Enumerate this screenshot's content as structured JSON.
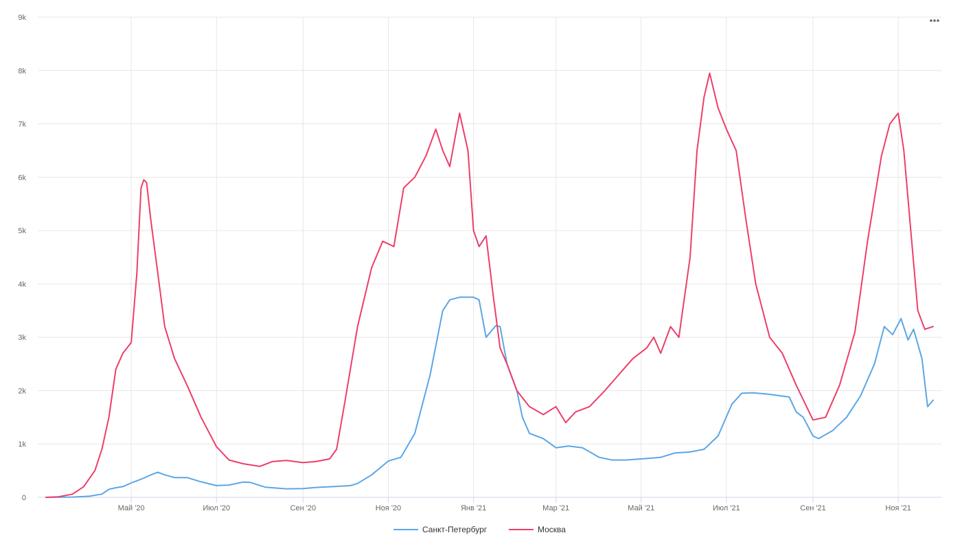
{
  "chart_data": {
    "type": "line",
    "title": "",
    "xlabel": "",
    "ylabel": "",
    "x_start": "2020-03-01",
    "x_end": "2021-11-26",
    "x_ticks": [
      {
        "label": "Май '20",
        "date": "2020-05-01"
      },
      {
        "label": "Июл '20",
        "date": "2020-07-01"
      },
      {
        "label": "Сен '20",
        "date": "2020-09-01"
      },
      {
        "label": "Ноя '20",
        "date": "2020-11-01"
      },
      {
        "label": "Янв '21",
        "date": "2021-01-01"
      },
      {
        "label": "Мар '21",
        "date": "2021-03-01"
      },
      {
        "label": "Май '21",
        "date": "2021-05-01"
      },
      {
        "label": "Июл '21",
        "date": "2021-07-01"
      },
      {
        "label": "Сен '21",
        "date": "2021-09-01"
      },
      {
        "label": "Ноя '21",
        "date": "2021-11-01"
      }
    ],
    "ylim": [
      0,
      9000
    ],
    "y_ticks": [
      {
        "label": "0",
        "value": 0
      },
      {
        "label": "1k",
        "value": 1000
      },
      {
        "label": "2k",
        "value": 2000
      },
      {
        "label": "3k",
        "value": 3000
      },
      {
        "label": "4k",
        "value": 4000
      },
      {
        "label": "5k",
        "value": 5000
      },
      {
        "label": "6k",
        "value": 6000
      },
      {
        "label": "7k",
        "value": 7000
      },
      {
        "label": "8k",
        "value": 8000
      },
      {
        "label": "9k",
        "value": 9000
      }
    ],
    "grid": true,
    "legend_position": "bottom-center",
    "series": [
      {
        "name": "Санкт-Петербург",
        "color": "#5aa6e6",
        "points": [
          [
            "2020-03-01",
            0
          ],
          [
            "2020-03-20",
            5
          ],
          [
            "2020-04-01",
            20
          ],
          [
            "2020-04-10",
            60
          ],
          [
            "2020-04-15",
            150
          ],
          [
            "2020-04-20",
            180
          ],
          [
            "2020-04-25",
            200
          ],
          [
            "2020-05-01",
            270
          ],
          [
            "2020-05-05",
            310
          ],
          [
            "2020-05-10",
            360
          ],
          [
            "2020-05-15",
            420
          ],
          [
            "2020-05-20",
            470
          ],
          [
            "2020-05-25",
            420
          ],
          [
            "2020-06-01",
            370
          ],
          [
            "2020-06-10",
            370
          ],
          [
            "2020-06-20",
            290
          ],
          [
            "2020-07-01",
            220
          ],
          [
            "2020-07-10",
            230
          ],
          [
            "2020-07-20",
            285
          ],
          [
            "2020-07-25",
            280
          ],
          [
            "2020-08-05",
            190
          ],
          [
            "2020-08-20",
            160
          ],
          [
            "2020-09-01",
            165
          ],
          [
            "2020-09-10",
            185
          ],
          [
            "2020-09-25",
            205
          ],
          [
            "2020-10-05",
            220
          ],
          [
            "2020-10-10",
            260
          ],
          [
            "2020-10-20",
            420
          ],
          [
            "2020-11-01",
            680
          ],
          [
            "2020-11-10",
            750
          ],
          [
            "2020-11-20",
            1200
          ],
          [
            "2020-12-01",
            2300
          ],
          [
            "2020-12-10",
            3500
          ],
          [
            "2020-12-15",
            3700
          ],
          [
            "2020-12-22",
            3750
          ],
          [
            "2021-01-01",
            3750
          ],
          [
            "2021-01-05",
            3700
          ],
          [
            "2021-01-10",
            3000
          ],
          [
            "2021-01-17",
            3220
          ],
          [
            "2021-01-20",
            3200
          ],
          [
            "2021-01-25",
            2500
          ],
          [
            "2021-02-01",
            2000
          ],
          [
            "2021-02-05",
            1500
          ],
          [
            "2021-02-10",
            1200
          ],
          [
            "2021-02-20",
            1100
          ],
          [
            "2021-03-01",
            930
          ],
          [
            "2021-03-10",
            960
          ],
          [
            "2021-03-20",
            930
          ],
          [
            "2021-04-01",
            750
          ],
          [
            "2021-04-10",
            700
          ],
          [
            "2021-04-20",
            700
          ],
          [
            "2021-05-01",
            720
          ],
          [
            "2021-05-15",
            750
          ],
          [
            "2021-05-25",
            830
          ],
          [
            "2021-06-05",
            850
          ],
          [
            "2021-06-15",
            900
          ],
          [
            "2021-06-25",
            1150
          ],
          [
            "2021-07-05",
            1750
          ],
          [
            "2021-07-12",
            1950
          ],
          [
            "2021-07-20",
            1960
          ],
          [
            "2021-08-01",
            1930
          ],
          [
            "2021-08-15",
            1880
          ],
          [
            "2021-08-20",
            1600
          ],
          [
            "2021-08-25",
            1500
          ],
          [
            "2021-09-01",
            1150
          ],
          [
            "2021-09-05",
            1100
          ],
          [
            "2021-09-15",
            1250
          ],
          [
            "2021-09-25",
            1500
          ],
          [
            "2021-10-05",
            1900
          ],
          [
            "2021-10-15",
            2500
          ],
          [
            "2021-10-22",
            3200
          ],
          [
            "2021-10-28",
            3050
          ],
          [
            "2021-11-03",
            3350
          ],
          [
            "2021-11-08",
            2950
          ],
          [
            "2021-11-12",
            3150
          ],
          [
            "2021-11-18",
            2600
          ],
          [
            "2021-11-22",
            1700
          ],
          [
            "2021-11-26",
            1820
          ]
        ]
      },
      {
        "name": "Москва",
        "color": "#ee3d68",
        "points": [
          [
            "2020-03-01",
            0
          ],
          [
            "2020-03-10",
            10
          ],
          [
            "2020-03-20",
            60
          ],
          [
            "2020-03-28",
            200
          ],
          [
            "2020-04-05",
            500
          ],
          [
            "2020-04-10",
            900
          ],
          [
            "2020-04-15",
            1500
          ],
          [
            "2020-04-20",
            2400
          ],
          [
            "2020-04-25",
            2700
          ],
          [
            "2020-05-01",
            2900
          ],
          [
            "2020-05-05",
            4200
          ],
          [
            "2020-05-08",
            5800
          ],
          [
            "2020-05-10",
            5950
          ],
          [
            "2020-05-12",
            5900
          ],
          [
            "2020-05-15",
            5200
          ],
          [
            "2020-05-20",
            4200
          ],
          [
            "2020-05-25",
            3200
          ],
          [
            "2020-06-01",
            2600
          ],
          [
            "2020-06-10",
            2100
          ],
          [
            "2020-06-20",
            1500
          ],
          [
            "2020-07-01",
            950
          ],
          [
            "2020-07-10",
            700
          ],
          [
            "2020-07-20",
            630
          ],
          [
            "2020-08-01",
            580
          ],
          [
            "2020-08-10",
            670
          ],
          [
            "2020-08-20",
            690
          ],
          [
            "2020-09-01",
            650
          ],
          [
            "2020-09-10",
            670
          ],
          [
            "2020-09-20",
            720
          ],
          [
            "2020-09-25",
            900
          ],
          [
            "2020-10-01",
            1800
          ],
          [
            "2020-10-10",
            3200
          ],
          [
            "2020-10-20",
            4300
          ],
          [
            "2020-10-28",
            4800
          ],
          [
            "2020-11-05",
            4700
          ],
          [
            "2020-11-12",
            5800
          ],
          [
            "2020-11-20",
            6000
          ],
          [
            "2020-11-28",
            6400
          ],
          [
            "2020-12-05",
            6900
          ],
          [
            "2020-12-10",
            6500
          ],
          [
            "2020-12-15",
            6200
          ],
          [
            "2020-12-22",
            7200
          ],
          [
            "2020-12-28",
            6500
          ],
          [
            "2021-01-01",
            5000
          ],
          [
            "2021-01-05",
            4700
          ],
          [
            "2021-01-10",
            4900
          ],
          [
            "2021-01-15",
            3800
          ],
          [
            "2021-01-20",
            2800
          ],
          [
            "2021-01-25",
            2500
          ],
          [
            "2021-02-01",
            2000
          ],
          [
            "2021-02-10",
            1700
          ],
          [
            "2021-02-20",
            1550
          ],
          [
            "2021-03-01",
            1700
          ],
          [
            "2021-03-08",
            1400
          ],
          [
            "2021-03-15",
            1600
          ],
          [
            "2021-03-25",
            1700
          ],
          [
            "2021-04-05",
            2000
          ],
          [
            "2021-04-15",
            2300
          ],
          [
            "2021-04-25",
            2600
          ],
          [
            "2021-05-05",
            2800
          ],
          [
            "2021-05-10",
            3000
          ],
          [
            "2021-05-15",
            2700
          ],
          [
            "2021-05-22",
            3200
          ],
          [
            "2021-05-28",
            3000
          ],
          [
            "2021-06-05",
            4500
          ],
          [
            "2021-06-10",
            6500
          ],
          [
            "2021-06-15",
            7500
          ],
          [
            "2021-06-19",
            7950
          ],
          [
            "2021-06-25",
            7300
          ],
          [
            "2021-07-01",
            6900
          ],
          [
            "2021-07-08",
            6500
          ],
          [
            "2021-07-15",
            5200
          ],
          [
            "2021-07-22",
            4000
          ],
          [
            "2021-08-01",
            3000
          ],
          [
            "2021-08-10",
            2700
          ],
          [
            "2021-08-20",
            2100
          ],
          [
            "2021-09-01",
            1450
          ],
          [
            "2021-09-10",
            1500
          ],
          [
            "2021-09-20",
            2100
          ],
          [
            "2021-10-01",
            3100
          ],
          [
            "2021-10-10",
            4800
          ],
          [
            "2021-10-20",
            6400
          ],
          [
            "2021-10-26",
            7000
          ],
          [
            "2021-11-01",
            7200
          ],
          [
            "2021-11-05",
            6500
          ],
          [
            "2021-11-10",
            5000
          ],
          [
            "2021-11-15",
            3500
          ],
          [
            "2021-11-20",
            3150
          ],
          [
            "2021-11-26",
            3200
          ]
        ]
      }
    ]
  },
  "legend": {
    "items": [
      {
        "label": "Санкт-Петербург",
        "color": "#5aa6e6"
      },
      {
        "label": "Москва",
        "color": "#ee3d68"
      }
    ]
  },
  "colors": {
    "grid": "#e6e6e6",
    "axis": "#ccd6eb",
    "tick_text": "#666666"
  }
}
